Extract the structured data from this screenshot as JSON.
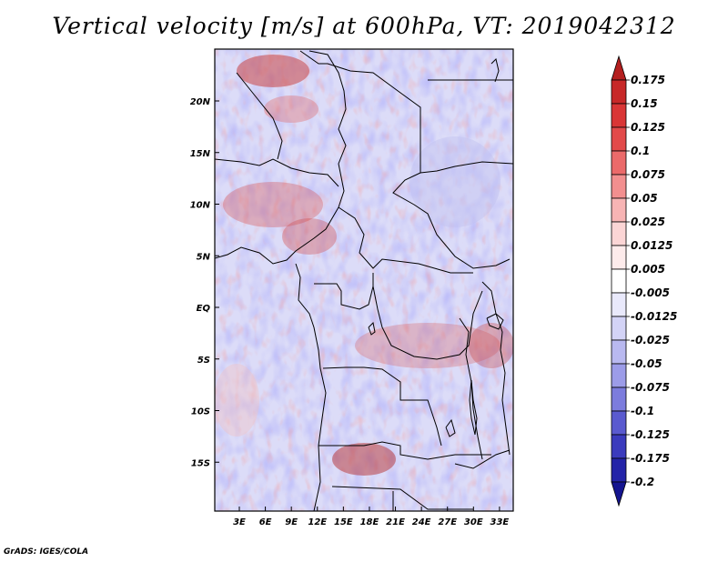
{
  "title": "Vertical velocity [m/s] at 600hPa, VT: 2019042312",
  "credit": "GrADS: IGES/COLA",
  "map": {
    "lat_labels": [
      "20N",
      "15N",
      "10N",
      "5N",
      "EQ",
      "5S",
      "10S",
      "15S"
    ],
    "lat_values": [
      20,
      15,
      10,
      5,
      0,
      -5,
      -10,
      -15
    ],
    "lon_labels": [
      "3E",
      "6E",
      "9E",
      "12E",
      "15E",
      "18E",
      "21E",
      "24E",
      "27E",
      "30E",
      "33E"
    ],
    "lon_values": [
      3,
      6,
      9,
      12,
      15,
      18,
      21,
      24,
      27,
      30,
      33
    ],
    "lon_range": [
      0,
      34
    ],
    "lat_range": [
      -20,
      25
    ]
  },
  "colorbar": {
    "labels": [
      "0.175",
      "0.15",
      "0.125",
      "0.1",
      "0.075",
      "0.05",
      "0.025",
      "0.0125",
      "0.005",
      "-0.005",
      "-0.0125",
      "-0.025",
      "-0.05",
      "-0.075",
      "-0.1",
      "-0.125",
      "-0.175",
      "-0.2"
    ],
    "colors": [
      "#b41f1f",
      "#c72828",
      "#d93636",
      "#e24a4a",
      "#eb6a6a",
      "#f28f8f",
      "#f7b4b4",
      "#fbd5d5",
      "#fdebeb",
      "#ffffff",
      "#e9e9fb",
      "#d3d3f6",
      "#b9b9f0",
      "#9c9ce8",
      "#7c7cdd",
      "#5a5acf",
      "#3b3bbd",
      "#2424a8",
      "#14148f"
    ]
  }
}
